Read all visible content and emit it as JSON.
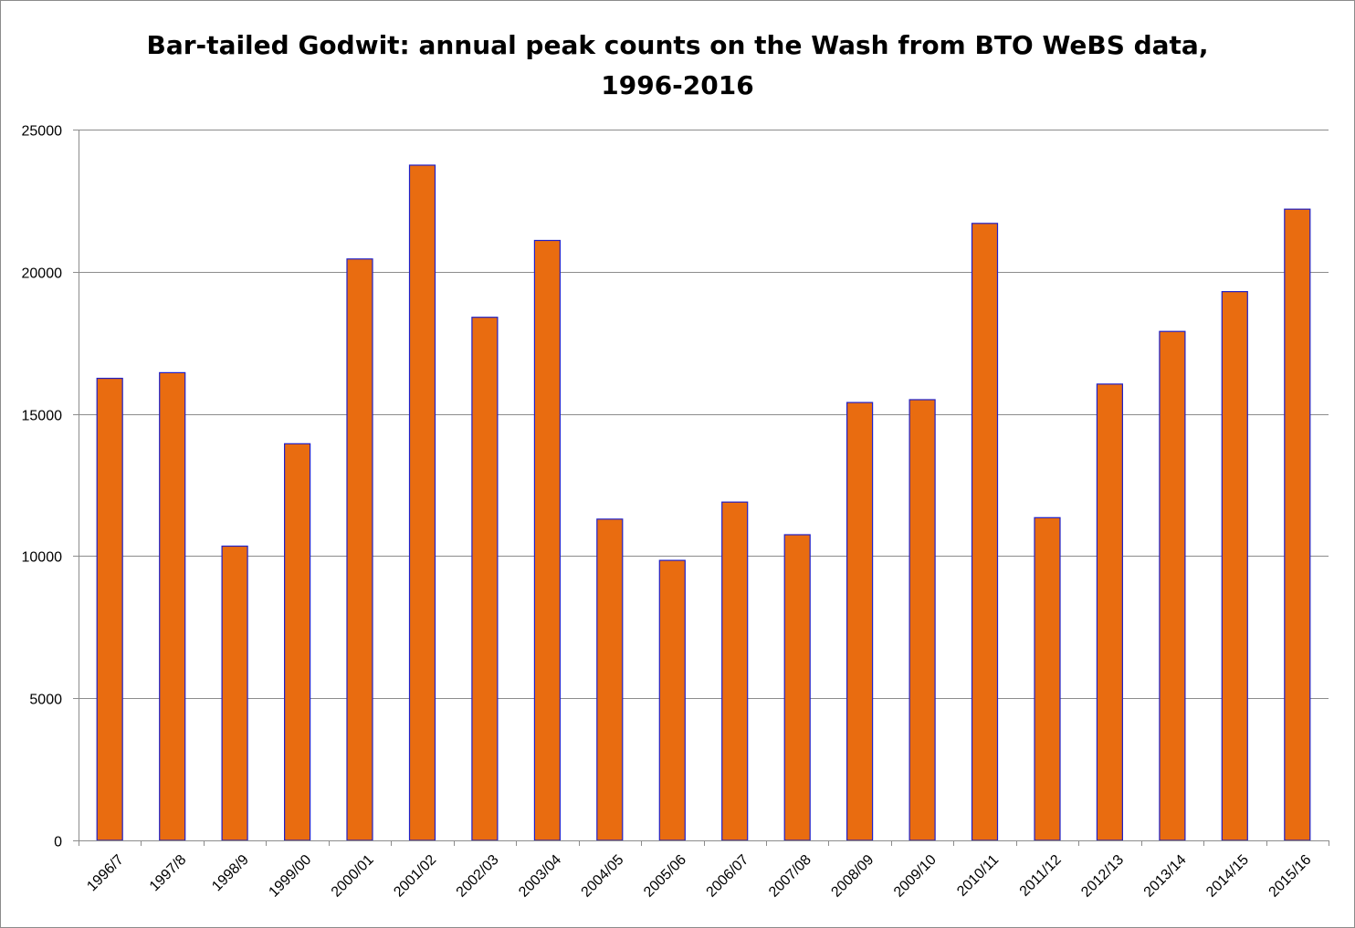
{
  "chart_data": {
    "type": "bar",
    "title_lines": [
      "Bar-tailed Godwit: annual peak counts on the Wash from BTO WeBS data,",
      "1996-2016"
    ],
    "xlabel": "",
    "ylabel": "",
    "ylim": [
      0,
      25000
    ],
    "yticks": [
      0,
      5000,
      10000,
      15000,
      20000,
      25000
    ],
    "ytick_labels": [
      "0",
      "5000",
      "10000",
      "15000",
      "20000",
      "25000"
    ],
    "grid": true,
    "legend": "none",
    "categories": [
      "1996/7",
      "1997/8",
      "1998/9",
      "1999/00",
      "2000/01",
      "2001/02",
      "2002/03",
      "2003/04",
      "2004/05",
      "2005/06",
      "2006/07",
      "2007/08",
      "2008/09",
      "2009/10",
      "2010/11",
      "2011/12",
      "2012/13",
      "2013/14",
      "2014/15",
      "2015/16"
    ],
    "values": [
      16250,
      16450,
      10350,
      13950,
      20450,
      23750,
      18400,
      21100,
      11300,
      9850,
      11900,
      10750,
      15400,
      15500,
      21700,
      11350,
      16050,
      17900,
      19300,
      22200
    ],
    "colors": {
      "bar_fill": "#e96c10",
      "bar_stroke": "#2020c8",
      "grid": "#8c8c8c",
      "axis": "#8c8c8c"
    }
  }
}
